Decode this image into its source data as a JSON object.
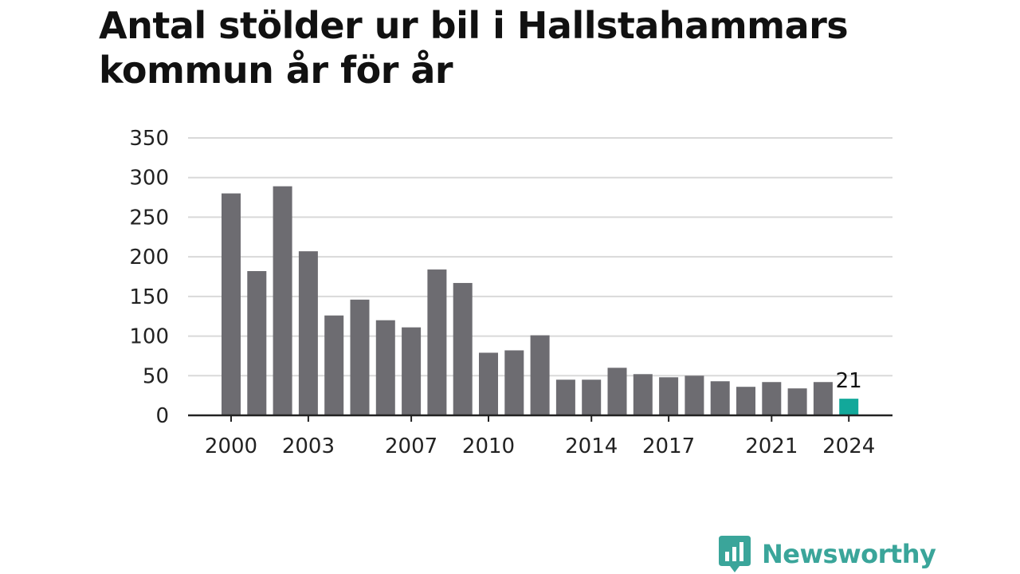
{
  "title": "Antal stölder ur bil i Hallstahammars kommun år för år",
  "brand": {
    "name": "Newsworthy",
    "icon": "chart-bubble-icon",
    "color": "#3aa59a"
  },
  "colors": {
    "bar": "#6d6c71",
    "highlight": "#12a89a",
    "grid": "#d9d9d9",
    "axis": "#222222"
  },
  "chart_data": {
    "type": "bar",
    "title": "Antal stölder ur bil i Hallstahammars kommun år för år",
    "xlabel": "",
    "ylabel": "",
    "categories": [
      "2000",
      "2001",
      "2002",
      "2003",
      "2004",
      "2005",
      "2006",
      "2007",
      "2008",
      "2009",
      "2010",
      "2011",
      "2012",
      "2013",
      "2014",
      "2015",
      "2016",
      "2017",
      "2018",
      "2019",
      "2020",
      "2021",
      "2022",
      "2023",
      "2024"
    ],
    "values": [
      280,
      182,
      289,
      207,
      126,
      146,
      120,
      111,
      184,
      167,
      79,
      82,
      101,
      45,
      45,
      60,
      52,
      48,
      50,
      43,
      36,
      42,
      34,
      42,
      21
    ],
    "x_tick_labels": [
      "2000",
      "2003",
      "2007",
      "2010",
      "2014",
      "2017",
      "2021",
      "2024"
    ],
    "y_ticks": [
      0,
      50,
      100,
      150,
      200,
      250,
      300,
      350
    ],
    "ylim": [
      0,
      350
    ],
    "grid": true,
    "highlight_category": "2024",
    "annotations": [
      {
        "category": "2024",
        "text": "21"
      }
    ]
  }
}
